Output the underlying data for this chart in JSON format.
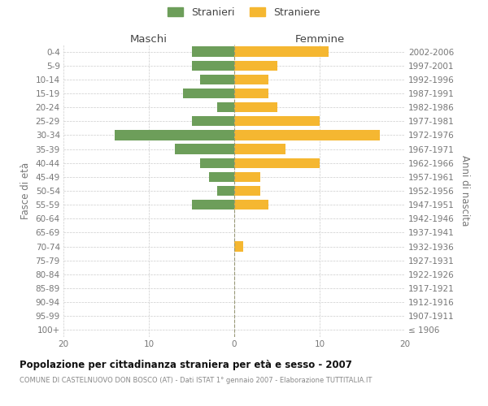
{
  "age_groups": [
    "100+",
    "95-99",
    "90-94",
    "85-89",
    "80-84",
    "75-79",
    "70-74",
    "65-69",
    "60-64",
    "55-59",
    "50-54",
    "45-49",
    "40-44",
    "35-39",
    "30-34",
    "25-29",
    "20-24",
    "15-19",
    "10-14",
    "5-9",
    "0-4"
  ],
  "birth_years": [
    "≤ 1906",
    "1907-1911",
    "1912-1916",
    "1917-1921",
    "1922-1926",
    "1927-1931",
    "1932-1936",
    "1937-1941",
    "1942-1946",
    "1947-1951",
    "1952-1956",
    "1957-1961",
    "1962-1966",
    "1967-1971",
    "1972-1976",
    "1977-1981",
    "1982-1986",
    "1987-1991",
    "1992-1996",
    "1997-2001",
    "2002-2006"
  ],
  "maschi": [
    0,
    0,
    0,
    0,
    0,
    0,
    0,
    0,
    0,
    5,
    2,
    3,
    4,
    7,
    14,
    5,
    2,
    6,
    4,
    5,
    5
  ],
  "femmine": [
    0,
    0,
    0,
    0,
    0,
    0,
    1,
    0,
    0,
    4,
    3,
    3,
    10,
    6,
    17,
    10,
    5,
    4,
    4,
    5,
    11
  ],
  "male_color": "#6d9e5a",
  "female_color": "#f5b731",
  "title": "Popolazione per cittadinanza straniera per età e sesso - 2007",
  "subtitle": "COMUNE DI CASTELNUOVO DON BOSCO (AT) - Dati ISTAT 1° gennaio 2007 - Elaborazione TUTTITALIA.IT",
  "ylabel_left": "Fasce di età",
  "ylabel_right": "Anni di nascita",
  "header_left": "Maschi",
  "header_right": "Femmine",
  "legend_male": "Stranieri",
  "legend_female": "Straniere",
  "xlim": 20,
  "background_color": "#ffffff",
  "grid_color": "#cccccc",
  "text_color": "#777777",
  "header_color": "#444444",
  "title_color": "#111111",
  "subtitle_color": "#888888"
}
